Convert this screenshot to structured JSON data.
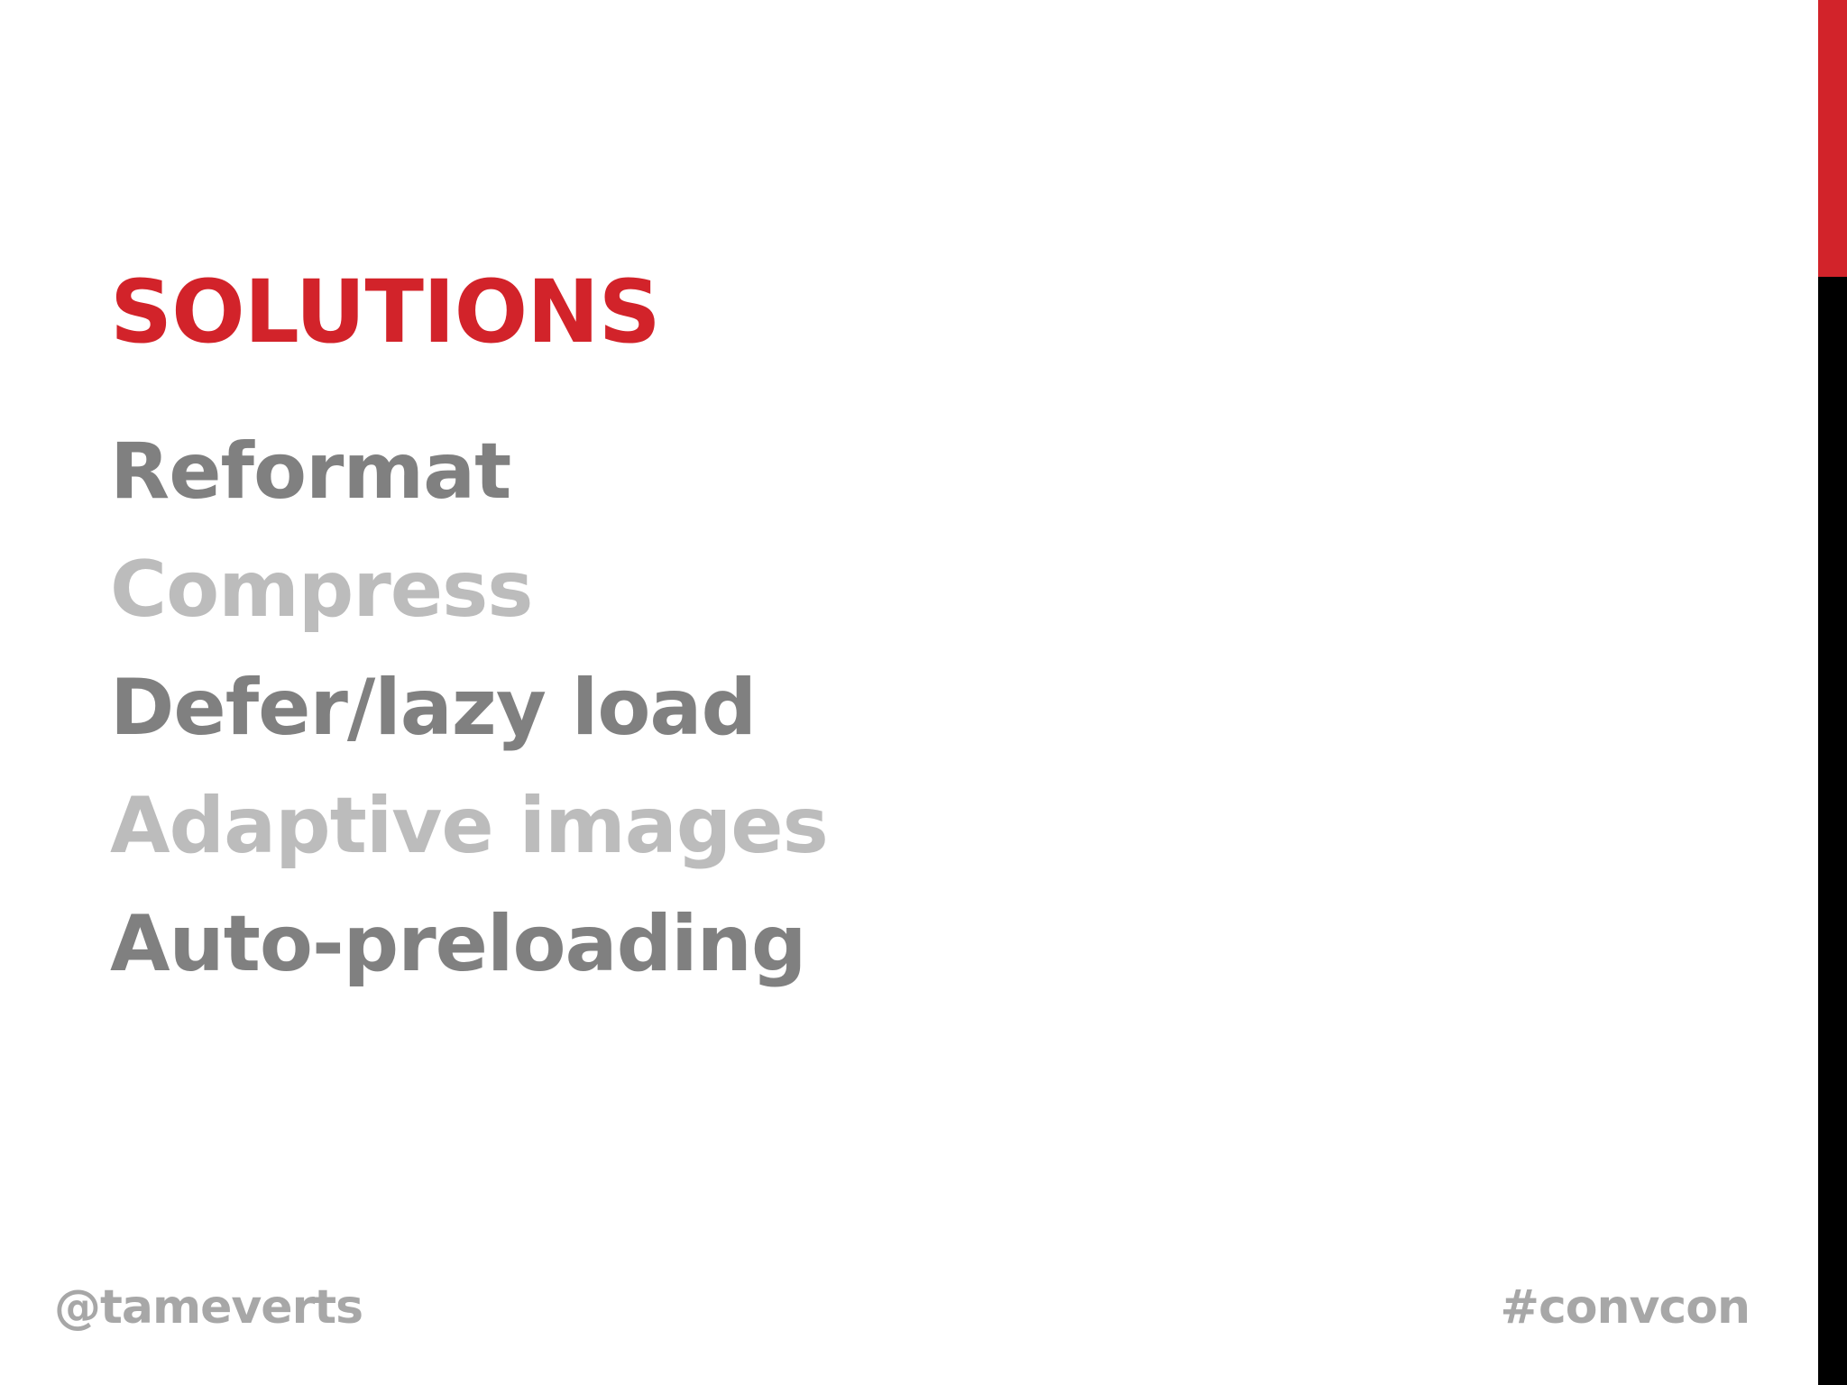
{
  "slide": {
    "title": "SOLUTIONS",
    "items": [
      {
        "label": "Reformat",
        "state": "emphasized",
        "color": "#808080"
      },
      {
        "label": "Compress",
        "state": "dimmed",
        "color": "#bcbcbc"
      },
      {
        "label": "Defer/lazy load",
        "state": "emphasized",
        "color": "#808080"
      },
      {
        "label": "Adaptive images",
        "state": "dimmed",
        "color": "#bcbcbc"
      },
      {
        "label": "Auto-preloading",
        "state": "emphasized",
        "color": "#808080"
      }
    ],
    "footer": {
      "handle": "@tameverts",
      "hashtag": "#convcon"
    }
  },
  "colors": {
    "accent": "#d2232a",
    "sidebar_dark": "#000000",
    "footer_text": "#a7a7a7"
  }
}
